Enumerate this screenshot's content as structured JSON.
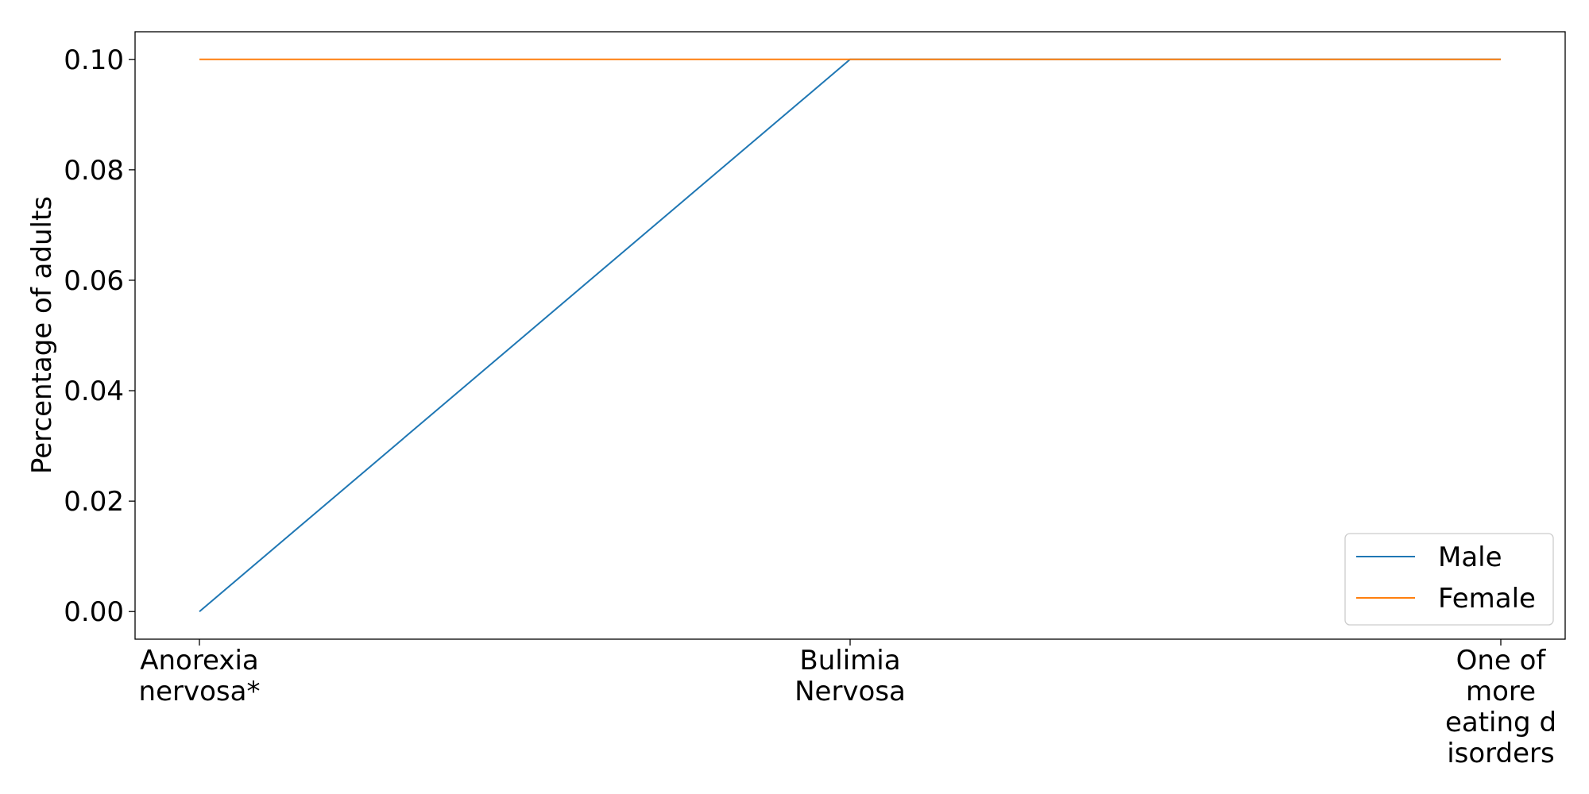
{
  "chart_data": {
    "type": "line",
    "title": "",
    "xlabel": "",
    "ylabel": "Percentage of adults",
    "categories": [
      [
        "Anorexia",
        "nervosa*"
      ],
      [
        "Bulimia",
        "Nervosa"
      ],
      [
        "One of",
        "more",
        "eating d",
        "isorders"
      ]
    ],
    "series": [
      {
        "name": "Male",
        "values": [
          0.0,
          0.1,
          0.1
        ],
        "color": "#1f77b4"
      },
      {
        "name": "Female",
        "values": [
          0.1,
          0.1,
          0.1
        ],
        "color": "#ff7f0e"
      }
    ],
    "ylim": [
      -0.005,
      0.105
    ],
    "yticks": [
      0.0,
      0.02,
      0.04,
      0.06,
      0.08,
      0.1
    ],
    "ytick_labels": [
      "0.00",
      "0.02",
      "0.04",
      "0.06",
      "0.08",
      "0.10"
    ],
    "grid": false,
    "legend": {
      "placement": "bottom-right"
    }
  }
}
